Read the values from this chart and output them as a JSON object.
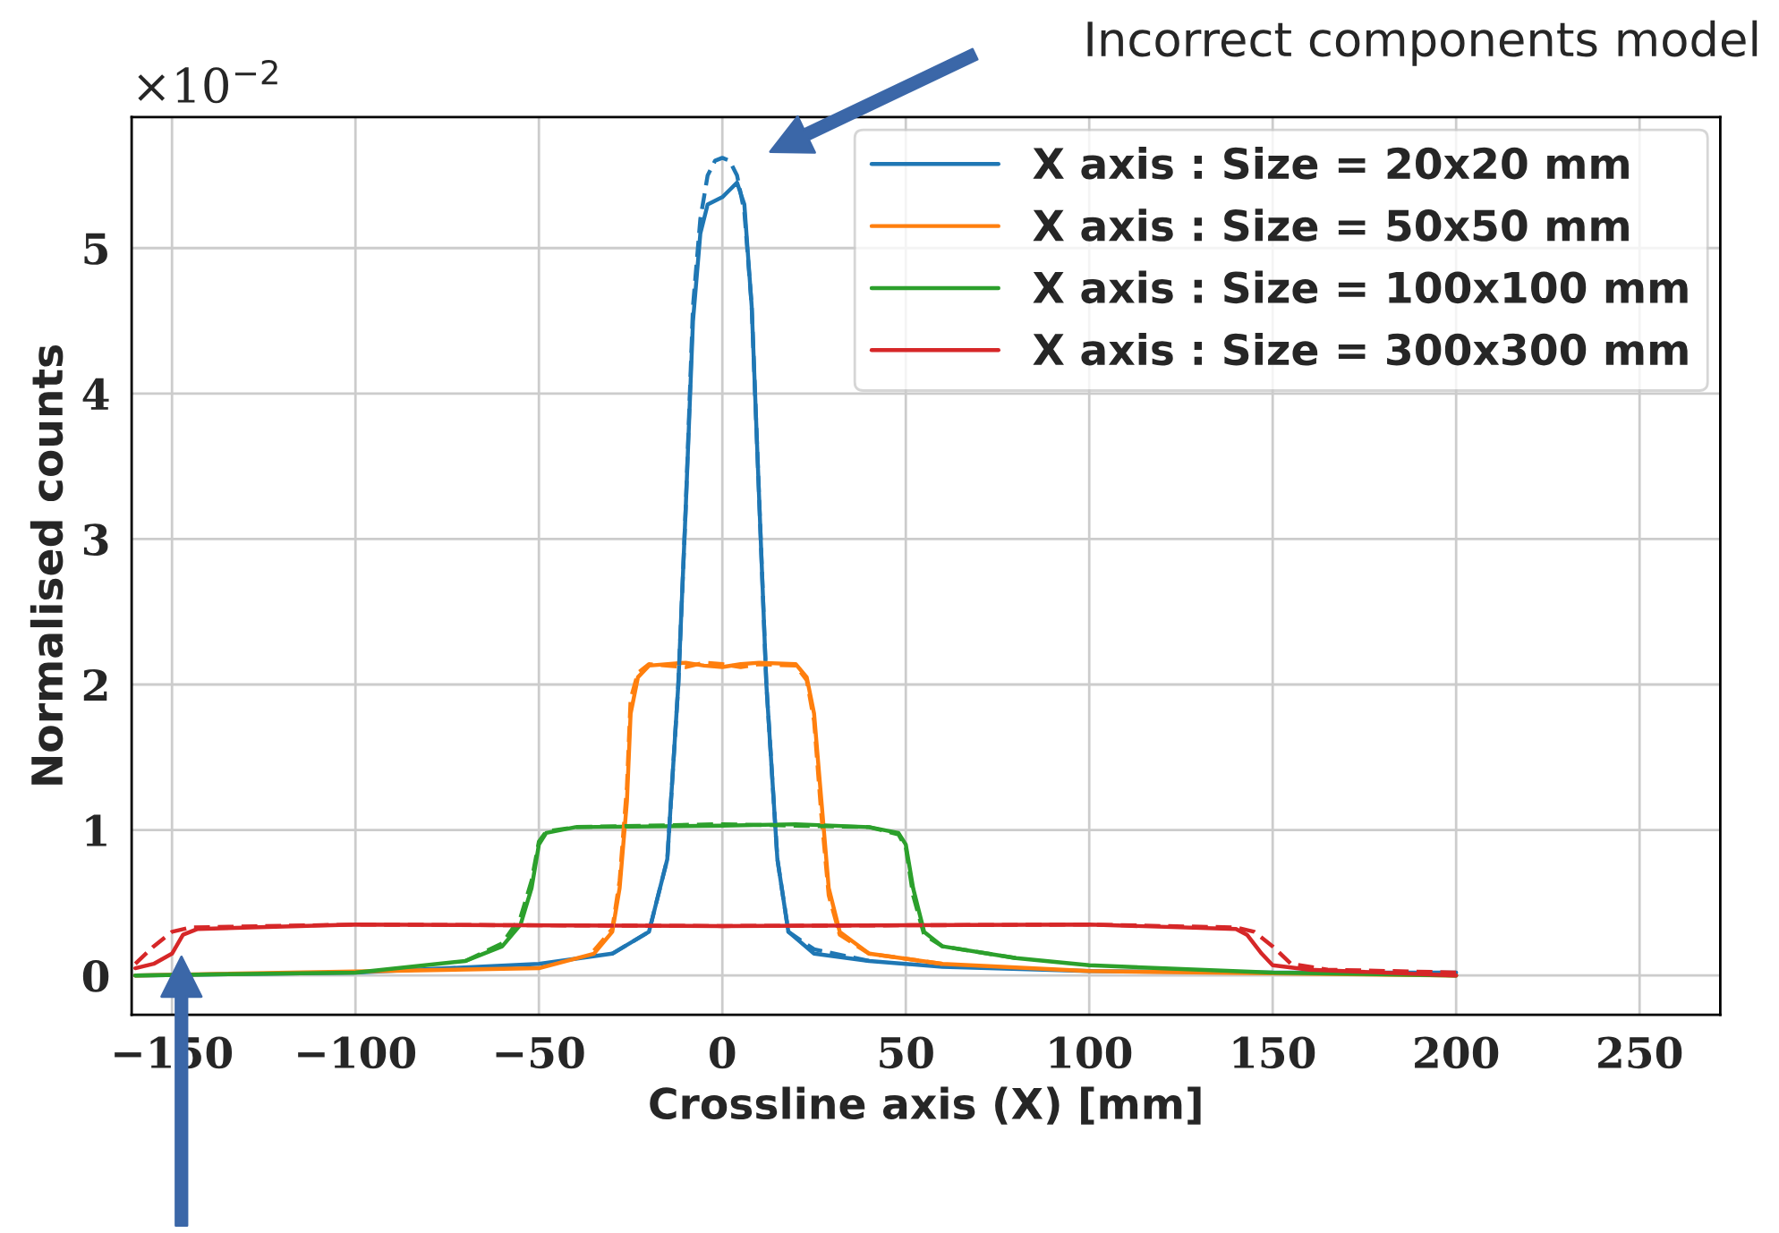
{
  "chart_data": {
    "type": "line",
    "xlabel": "Crossline axis (X) [mm]",
    "ylabel": "Normalised counts",
    "xlim": [
      -161,
      272
    ],
    "ylim": [
      -0.27,
      5.9
    ],
    "xticks": [
      {
        "value": -150,
        "label": "−150"
      },
      {
        "value": -100,
        "label": "−100"
      },
      {
        "value": -50,
        "label": "−50"
      },
      0,
      50,
      100,
      150,
      200,
      250
    ],
    "yticks": [
      0,
      1,
      2,
      3,
      4,
      5
    ],
    "grid": true,
    "legend": "top right",
    "marker": "none",
    "annotations": [
      "×10$^{−2}$",
      "Incorrect components model"
    ],
    "series": [
      {
        "name": "X axis : Size = 20x20 mm",
        "color": "#1f77b4",
        "line_style": "solid",
        "x": [
          -160,
          -100,
          -50,
          -30,
          -20,
          -15,
          -12,
          -10,
          -8,
          -6,
          -4,
          0,
          2,
          4,
          6,
          8,
          10,
          12,
          15,
          18,
          25,
          40,
          60,
          100,
          150,
          200
        ],
        "values": [
          0.0,
          0.02,
          0.08,
          0.15,
          0.3,
          0.8,
          2.0,
          3.2,
          4.5,
          5.1,
          5.3,
          5.35,
          5.4,
          5.45,
          5.3,
          4.6,
          3.3,
          2.0,
          0.8,
          0.3,
          0.15,
          0.1,
          0.06,
          0.03,
          0.02,
          0.02
        ]
      },
      {
        "color": "#1f77b4",
        "line_style": "dashed",
        "x": [
          -30,
          -20,
          -15,
          -12,
          -10,
          -8,
          -6,
          -4,
          -2,
          0,
          2,
          4,
          6,
          8,
          10,
          12,
          15,
          18,
          25,
          40
        ],
        "values": [
          0.15,
          0.3,
          0.8,
          2.0,
          3.2,
          4.6,
          5.2,
          5.5,
          5.6,
          5.62,
          5.6,
          5.5,
          5.25,
          4.6,
          3.3,
          2.0,
          0.8,
          0.3,
          0.18,
          0.1
        ]
      },
      {
        "name": "X axis : Size = 50x50 mm",
        "color": "#ff7f0e",
        "line_style": "solid",
        "x": [
          -160,
          -50,
          -35,
          -30,
          -28,
          -26,
          -25,
          -23,
          -20,
          -10,
          -5,
          0,
          5,
          10,
          20,
          23,
          25,
          27,
          29,
          32,
          40,
          60,
          100,
          200
        ],
        "values": [
          0.0,
          0.05,
          0.15,
          0.3,
          0.6,
          1.2,
          1.8,
          2.05,
          2.13,
          2.15,
          2.13,
          2.12,
          2.14,
          2.15,
          2.14,
          2.05,
          1.8,
          1.2,
          0.6,
          0.3,
          0.15,
          0.08,
          0.03,
          0.0
        ]
      },
      {
        "color": "#ff7f0e",
        "line_style": "dashed",
        "x": [
          -35,
          -30,
          -28,
          -26,
          -25,
          -23,
          -20,
          -10,
          -5,
          0,
          5,
          10,
          20,
          23,
          25,
          27,
          29,
          32,
          40,
          60
        ],
        "values": [
          0.17,
          0.32,
          0.65,
          1.3,
          1.9,
          2.08,
          2.14,
          2.12,
          2.15,
          2.14,
          2.12,
          2.14,
          2.13,
          2.03,
          1.75,
          1.1,
          0.55,
          0.28,
          0.15,
          0.08
        ]
      },
      {
        "name": "X axis : Size = 100x100 mm",
        "color": "#2ca02c",
        "line_style": "solid",
        "x": [
          -160,
          -100,
          -70,
          -60,
          -55,
          -52,
          -50,
          -48,
          -40,
          0,
          20,
          40,
          48,
          50,
          52,
          55,
          60,
          80,
          100,
          150,
          200
        ],
        "values": [
          0.0,
          0.02,
          0.1,
          0.2,
          0.35,
          0.6,
          0.9,
          0.98,
          1.02,
          1.03,
          1.04,
          1.02,
          0.98,
          0.9,
          0.6,
          0.3,
          0.2,
          0.12,
          0.07,
          0.02,
          0.0
        ]
      },
      {
        "color": "#2ca02c",
        "line_style": "dashed",
        "x": [
          -70,
          -60,
          -55,
          -52,
          -50,
          -48,
          -40,
          0,
          20,
          40,
          48,
          50,
          52,
          55,
          60,
          80
        ],
        "values": [
          0.1,
          0.22,
          0.4,
          0.65,
          0.92,
          0.99,
          1.02,
          1.04,
          1.03,
          1.02,
          0.97,
          0.88,
          0.55,
          0.28,
          0.2,
          0.12
        ]
      },
      {
        "name": "X axis : Size = 300x300 mm",
        "color": "#d62728",
        "line_style": "solid",
        "x": [
          -160,
          -155,
          -150,
          -147,
          -143,
          -100,
          0,
          100,
          140,
          143,
          147,
          150,
          160,
          200
        ],
        "values": [
          0.05,
          0.08,
          0.15,
          0.28,
          0.32,
          0.35,
          0.34,
          0.35,
          0.32,
          0.28,
          0.15,
          0.07,
          0.04,
          0.0
        ]
      },
      {
        "color": "#d62728",
        "line_style": "dashed",
        "x": [
          -160,
          -155,
          -150,
          -145,
          -100,
          0,
          100,
          140,
          145,
          150,
          155,
          165,
          200
        ],
        "values": [
          0.08,
          0.2,
          0.3,
          0.33,
          0.35,
          0.34,
          0.35,
          0.33,
          0.3,
          0.2,
          0.08,
          0.04,
          0.02
        ]
      }
    ]
  }
}
